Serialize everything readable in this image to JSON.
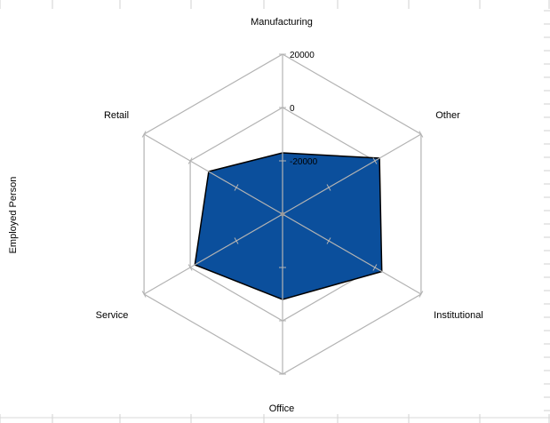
{
  "chart_data": {
    "type": "radar",
    "ylabel": "Employed Person",
    "categories": [
      "Manufacturing",
      "Other",
      "Institutional",
      "Office",
      "Service",
      "Retail"
    ],
    "series": [
      {
        "values": [
          -17000,
          2000,
          3000,
          -8000,
          -2000,
          -8000
        ],
        "color": "#0b4f9c"
      }
    ],
    "rlim": [
      -40000,
      20000
    ],
    "ticks": [
      "20000",
      "0",
      "-20000"
    ],
    "tick_values": [
      20000,
      0,
      -20000
    ],
    "grid": true
  }
}
